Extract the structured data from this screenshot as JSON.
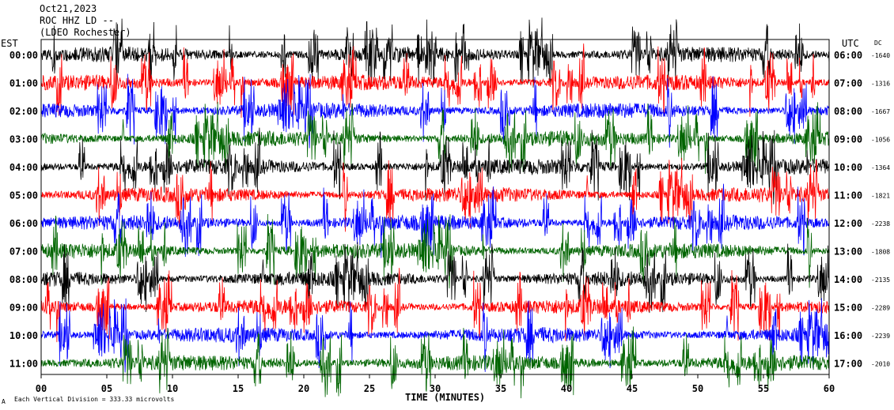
{
  "header": {
    "line1": "Oct21,2023",
    "line2": "ROC HHZ LD --",
    "line3": "(LDEO Rochester)"
  },
  "labels": {
    "left_tz": "EST",
    "right_tz": "UTC",
    "dc_label": "DC",
    "xlabel": "TIME (MINUTES)",
    "footnote": "Each Vertical Division = 333.33 microvolts",
    "footnote_mark": "A"
  },
  "chart_data": {
    "type": "line",
    "title": "",
    "xlabel": "TIME (MINUTES)",
    "xlim": [
      0,
      60
    ],
    "x_ticks": [
      "00",
      "05",
      "10",
      "15",
      "20",
      "25",
      "30",
      "35",
      "40",
      "45",
      "50",
      "55",
      "60"
    ],
    "rows": [
      {
        "est": "00:00",
        "utc": "06:00",
        "dc": "-1640",
        "color": "#000000"
      },
      {
        "est": "01:00",
        "utc": "07:00",
        "dc": "-1316",
        "color": "#ff0000"
      },
      {
        "est": "02:00",
        "utc": "08:00",
        "dc": "-1667",
        "color": "#0000ff"
      },
      {
        "est": "03:00",
        "utc": "09:00",
        "dc": "-1056",
        "color": "#006400"
      },
      {
        "est": "04:00",
        "utc": "10:00",
        "dc": "-1364",
        "color": "#000000"
      },
      {
        "est": "05:00",
        "utc": "11:00",
        "dc": "-1821",
        "color": "#ff0000"
      },
      {
        "est": "06:00",
        "utc": "12:00",
        "dc": "-2238",
        "color": "#0000ff"
      },
      {
        "est": "07:00",
        "utc": "13:00",
        "dc": "-1808",
        "color": "#006400"
      },
      {
        "est": "08:00",
        "utc": "14:00",
        "dc": "-2135",
        "color": "#000000"
      },
      {
        "est": "09:00",
        "utc": "15:00",
        "dc": "-2289",
        "color": "#ff0000"
      },
      {
        "est": "10:00",
        "utc": "16:00",
        "dc": "-2239",
        "color": "#0000ff"
      },
      {
        "est": "11:00",
        "utc": "17:00",
        "dc": "-2010",
        "color": "#006400"
      }
    ]
  }
}
